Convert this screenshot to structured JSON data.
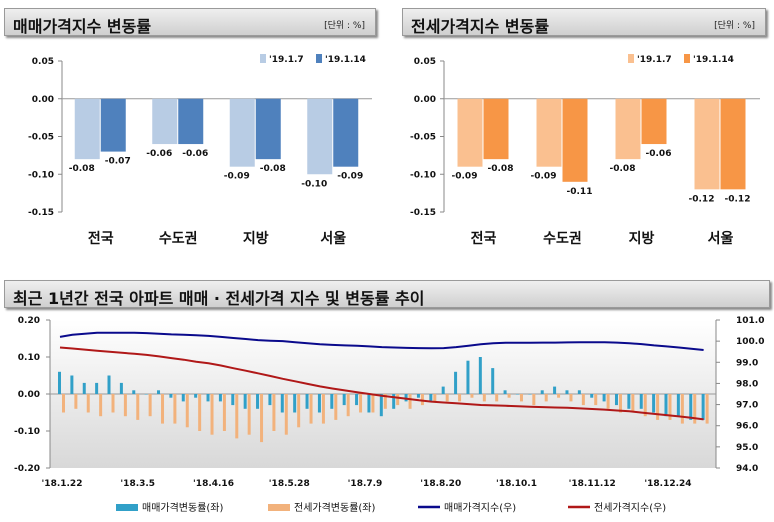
{
  "sale_chart": {
    "title": "매매가격지수 변동률",
    "unit": "[단위 : %]",
    "chart_data": {
      "type": "bar",
      "categories": [
        "전국",
        "수도권",
        "지방",
        "서울"
      ],
      "series": [
        {
          "name": "'19.1.7",
          "values": [
            -0.08,
            -0.06,
            -0.09,
            -0.1
          ],
          "labels": [
            "-0.08",
            "-0.06",
            "-0.09",
            "-0.10"
          ],
          "color": "#b8cce4"
        },
        {
          "name": "'19.1.14",
          "values": [
            -0.07,
            -0.06,
            -0.08,
            -0.09
          ],
          "labels": [
            "-0.07",
            "-0.06",
            "-0.08",
            "-0.09"
          ],
          "color": "#4f81bd"
        }
      ],
      "ylim": [
        -0.15,
        0.05
      ],
      "yticks": [
        "0.05",
        "0.00",
        "-0.05",
        "-0.10",
        "-0.15"
      ],
      "ytick_values": [
        0.05,
        0,
        -0.05,
        -0.1,
        -0.15
      ],
      "legend": "top-right"
    }
  },
  "jeonse_chart": {
    "title": "전세가격지수 변동률",
    "unit": "[단위 : %]",
    "chart_data": {
      "type": "bar",
      "categories": [
        "전국",
        "수도권",
        "지방",
        "서울"
      ],
      "series": [
        {
          "name": "'19.1.7",
          "values": [
            -0.09,
            -0.09,
            -0.08,
            -0.12
          ],
          "labels": [
            "-0.09",
            "-0.09",
            "-0.08",
            "-0.12"
          ],
          "color": "#fac090"
        },
        {
          "name": "'19.1.14",
          "values": [
            -0.08,
            -0.11,
            -0.06,
            -0.12
          ],
          "labels": [
            "-0.08",
            "-0.11",
            "-0.06",
            "-0.12"
          ],
          "color": "#f79646"
        }
      ],
      "ylim": [
        -0.15,
        0.05
      ],
      "yticks": [
        "0.05",
        "0.00",
        "-0.05",
        "-0.10",
        "-0.15"
      ],
      "ytick_values": [
        0.05,
        0,
        -0.05,
        -0.1,
        -0.15
      ],
      "legend": "top-right"
    }
  },
  "trend_chart": {
    "title": "최근 1년간 전국 아파트 매매 · 전세가격 지수 및 변동률 추이",
    "chart_data": {
      "type": "bar",
      "x_labels": [
        "'18.1.22",
        "'18.3.5",
        "'18.4.16",
        "'18.5.28",
        "'18.7.9",
        "'18.8.20",
        "'18.10.1",
        "'18.11.12",
        "'18.12.24"
      ],
      "left_ylim": [
        -0.2,
        0.2
      ],
      "left_yticks": [
        "0.20",
        "0.10",
        "0.00",
        "-0.10",
        "-0.20"
      ],
      "left_ytick_values": [
        0.2,
        0.1,
        0,
        -0.1,
        -0.2
      ],
      "right_ylim": [
        94.0,
        101.0
      ],
      "right_yticks": [
        "101.0",
        "100.0",
        "99.0",
        "98.0",
        "97.0",
        "96.0",
        "95.0",
        "94.0"
      ],
      "right_ytick_values": [
        101,
        100,
        99,
        98,
        97,
        96,
        95,
        94
      ],
      "series": [
        {
          "name": "매매가격변동률(좌)",
          "kind": "bar",
          "color": "#31a0c8",
          "values": [
            0.06,
            0.05,
            0.03,
            0.03,
            0.05,
            0.03,
            0.01,
            0.0,
            0.01,
            -0.01,
            -0.02,
            -0.01,
            -0.02,
            -0.02,
            -0.03,
            -0.04,
            -0.04,
            -0.03,
            -0.05,
            -0.05,
            -0.04,
            -0.05,
            -0.04,
            -0.03,
            -0.03,
            -0.05,
            -0.06,
            -0.04,
            -0.02,
            -0.01,
            -0.02,
            0.02,
            0.06,
            0.09,
            0.1,
            0.07,
            0.01,
            0.0,
            0.0,
            0.01,
            0.02,
            0.01,
            0.01,
            -0.01,
            -0.02,
            -0.03,
            -0.04,
            -0.04,
            -0.05,
            -0.06,
            -0.06,
            -0.07,
            -0.07
          ]
        },
        {
          "name": "전세가격변동률(좌)",
          "kind": "bar",
          "color": "#f2b27c",
          "values": [
            -0.05,
            -0.04,
            -0.05,
            -0.06,
            -0.05,
            -0.06,
            -0.07,
            -0.06,
            -0.08,
            -0.08,
            -0.09,
            -0.1,
            -0.11,
            -0.1,
            -0.12,
            -0.11,
            -0.13,
            -0.1,
            -0.11,
            -0.09,
            -0.08,
            -0.08,
            -0.07,
            -0.06,
            -0.05,
            -0.05,
            -0.04,
            -0.03,
            -0.04,
            -0.03,
            -0.02,
            -0.02,
            -0.02,
            -0.01,
            -0.02,
            -0.02,
            -0.01,
            -0.02,
            -0.03,
            -0.02,
            -0.01,
            -0.02,
            -0.03,
            -0.03,
            -0.04,
            -0.05,
            -0.05,
            -0.06,
            -0.07,
            -0.07,
            -0.08,
            -0.08,
            -0.08
          ]
        },
        {
          "name": "매매가격지수(우)",
          "kind": "line",
          "color": "#0a0a8c",
          "values": [
            100.2,
            100.3,
            100.35,
            100.4,
            100.4,
            100.4,
            100.4,
            100.38,
            100.35,
            100.32,
            100.3,
            100.28,
            100.25,
            100.2,
            100.15,
            100.1,
            100.05,
            100.02,
            100.0,
            99.95,
            99.9,
            99.85,
            99.82,
            99.8,
            99.78,
            99.75,
            99.72,
            99.7,
            99.68,
            99.67,
            99.66,
            99.67,
            99.72,
            99.78,
            99.85,
            99.9,
            99.92,
            99.92,
            99.92,
            99.93,
            99.93,
            99.94,
            99.95,
            99.95,
            99.95,
            99.93,
            99.9,
            99.86,
            99.8,
            99.75,
            99.7,
            99.64,
            99.58
          ]
        },
        {
          "name": "전세가격지수(우)",
          "kind": "line",
          "color": "#b01818",
          "values": [
            99.7,
            99.65,
            99.6,
            99.55,
            99.5,
            99.45,
            99.4,
            99.35,
            99.28,
            99.2,
            99.12,
            99.03,
            98.95,
            98.85,
            98.72,
            98.6,
            98.48,
            98.35,
            98.22,
            98.1,
            97.98,
            97.86,
            97.76,
            97.67,
            97.58,
            97.5,
            97.42,
            97.35,
            97.28,
            97.2,
            97.14,
            97.1,
            97.06,
            97.02,
            96.98,
            96.96,
            96.94,
            96.92,
            96.9,
            96.88,
            96.86,
            96.85,
            96.82,
            96.79,
            96.76,
            96.72,
            96.68,
            96.62,
            96.56,
            96.5,
            96.44,
            96.38,
            96.3
          ]
        }
      ],
      "legend": "bottom"
    }
  }
}
